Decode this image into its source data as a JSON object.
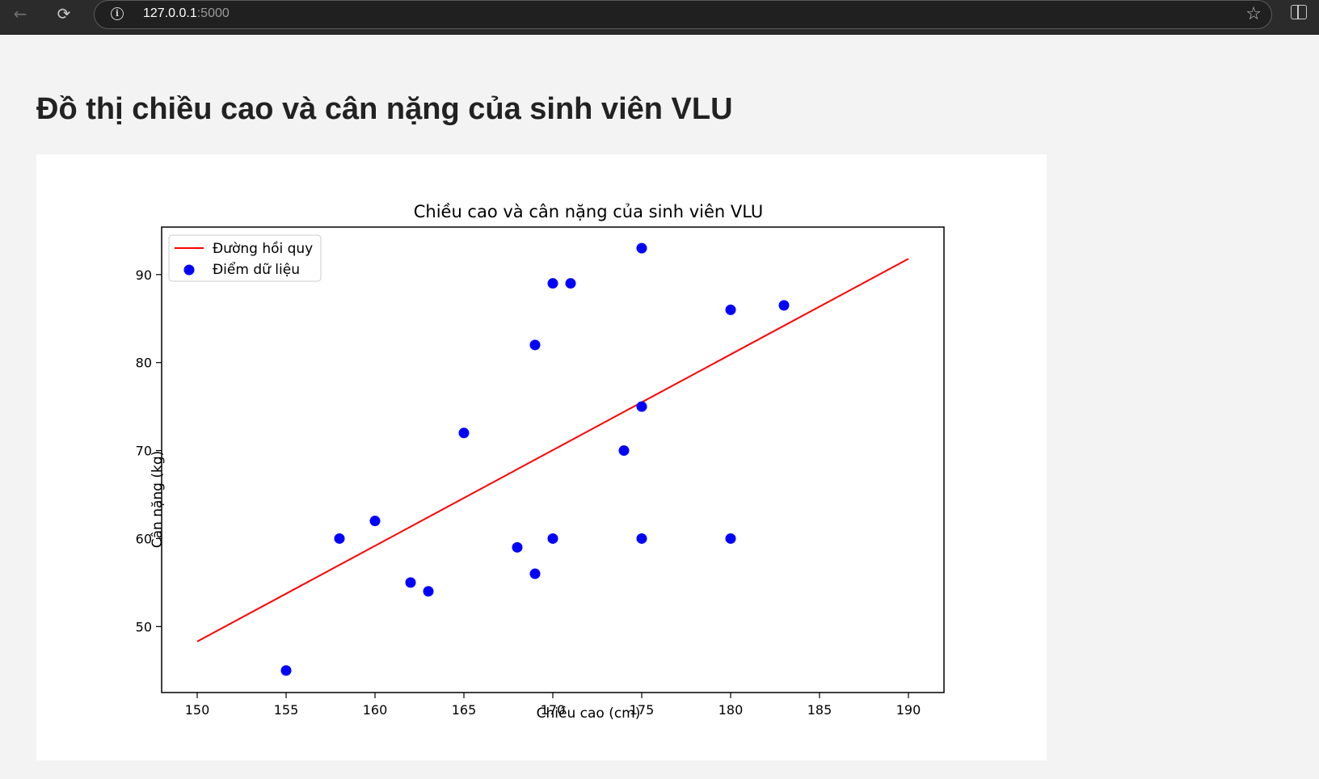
{
  "browser": {
    "url_host": "127.0.0.1",
    "url_port": ":5000"
  },
  "page": {
    "title": "Đồ thị chiều cao và cân nặng của sinh viên VLU"
  },
  "chart_data": {
    "type": "scatter",
    "title": "Chiều cao và cân nặng của sinh viên VLU",
    "xlabel": "Chiều cao (cm)",
    "ylabel": "Cân nặng (kg)",
    "xlim": [
      148,
      192
    ],
    "ylim": [
      42.5,
      95.4
    ],
    "xticks": [
      150,
      155,
      160,
      165,
      170,
      175,
      180,
      185,
      190
    ],
    "yticks": [
      50,
      60,
      70,
      80,
      90
    ],
    "legend_position": "upper-left",
    "grid": false,
    "series": [
      {
        "name": "Đường hồi quy",
        "kind": "line",
        "color": "#ff0000",
        "x": [
          150,
          190
        ],
        "y": [
          48.3,
          91.8
        ]
      },
      {
        "name": "Điểm dữ liệu",
        "kind": "scatter",
        "color": "#0000ff",
        "x": [
          155,
          158,
          160,
          162,
          163,
          165,
          168,
          169,
          169,
          170,
          170,
          171,
          174,
          175,
          175,
          175,
          180,
          180,
          183
        ],
        "y": [
          45,
          60,
          62,
          55,
          54,
          72,
          59,
          56,
          82,
          89,
          60,
          89,
          70,
          93,
          75,
          60,
          86,
          60,
          86.5
        ]
      }
    ]
  }
}
